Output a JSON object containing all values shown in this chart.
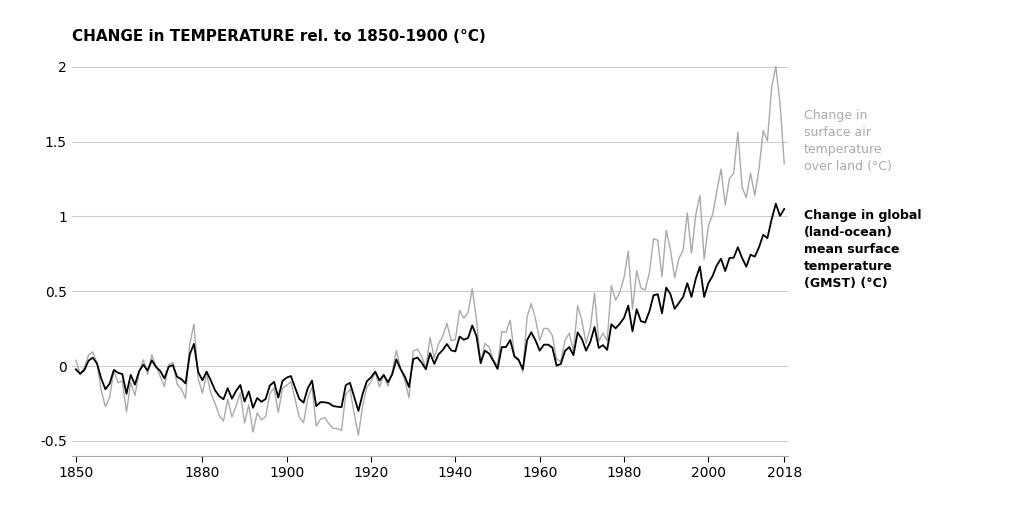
{
  "title": "CHANGE in TEMPERATURE rel. to 1850-1900 (°C)",
  "xlim": [
    1849,
    2019
  ],
  "ylim": [
    -0.6,
    2.1
  ],
  "yticks": [
    -0.5,
    0,
    0.5,
    1,
    1.5,
    2
  ],
  "xticks": [
    1850,
    1880,
    1900,
    1920,
    1940,
    1960,
    1980,
    2000,
    2018
  ],
  "land_color": "#aaaaaa",
  "gmst_color": "#000000",
  "label_land": "Change in\nsurface air\ntemperature\nover land (°C)",
  "label_gmst": "Change in global\n(land-ocean)\nmean surface\ntemperature\n(GMST) (°C)",
  "years": [
    1850,
    1851,
    1852,
    1853,
    1854,
    1855,
    1856,
    1857,
    1858,
    1859,
    1860,
    1861,
    1862,
    1863,
    1864,
    1865,
    1866,
    1867,
    1868,
    1869,
    1870,
    1871,
    1872,
    1873,
    1874,
    1875,
    1876,
    1877,
    1878,
    1879,
    1880,
    1881,
    1882,
    1883,
    1884,
    1885,
    1886,
    1887,
    1888,
    1889,
    1890,
    1891,
    1892,
    1893,
    1894,
    1895,
    1896,
    1897,
    1898,
    1899,
    1900,
    1901,
    1902,
    1903,
    1904,
    1905,
    1906,
    1907,
    1908,
    1909,
    1910,
    1911,
    1912,
    1913,
    1914,
    1915,
    1916,
    1917,
    1918,
    1919,
    1920,
    1921,
    1922,
    1923,
    1924,
    1925,
    1926,
    1927,
    1928,
    1929,
    1930,
    1931,
    1932,
    1933,
    1934,
    1935,
    1936,
    1937,
    1938,
    1939,
    1940,
    1941,
    1942,
    1943,
    1944,
    1945,
    1946,
    1947,
    1948,
    1949,
    1950,
    1951,
    1952,
    1953,
    1954,
    1955,
    1956,
    1957,
    1958,
    1959,
    1960,
    1961,
    1962,
    1963,
    1964,
    1965,
    1966,
    1967,
    1968,
    1969,
    1970,
    1971,
    1972,
    1973,
    1974,
    1975,
    1976,
    1977,
    1978,
    1979,
    1980,
    1981,
    1982,
    1983,
    1984,
    1985,
    1986,
    1987,
    1988,
    1989,
    1990,
    1991,
    1992,
    1993,
    1994,
    1995,
    1996,
    1997,
    1998,
    1999,
    2000,
    2001,
    2002,
    2003,
    2004,
    2005,
    2006,
    2007,
    2008,
    2009,
    2010,
    2011,
    2012,
    2013,
    2014,
    2015,
    2016,
    2017,
    2018
  ],
  "gmst": [
    -0.022,
    -0.052,
    -0.027,
    0.036,
    0.056,
    0.017,
    -0.083,
    -0.155,
    -0.118,
    -0.026,
    -0.045,
    -0.053,
    -0.185,
    -0.059,
    -0.124,
    -0.034,
    0.009,
    -0.03,
    0.038,
    -0.006,
    -0.033,
    -0.083,
    -0.005,
    0.006,
    -0.072,
    -0.087,
    -0.116,
    0.078,
    0.148,
    -0.04,
    -0.095,
    -0.037,
    -0.096,
    -0.162,
    -0.201,
    -0.222,
    -0.148,
    -0.218,
    -0.166,
    -0.127,
    -0.237,
    -0.169,
    -0.279,
    -0.213,
    -0.239,
    -0.22,
    -0.13,
    -0.106,
    -0.211,
    -0.099,
    -0.077,
    -0.067,
    -0.146,
    -0.22,
    -0.244,
    -0.148,
    -0.097,
    -0.268,
    -0.241,
    -0.242,
    -0.248,
    -0.267,
    -0.272,
    -0.274,
    -0.128,
    -0.112,
    -0.207,
    -0.3,
    -0.187,
    -0.102,
    -0.075,
    -0.037,
    -0.096,
    -0.059,
    -0.108,
    -0.057,
    0.044,
    -0.02,
    -0.07,
    -0.14,
    0.046,
    0.057,
    0.023,
    -0.022,
    0.086,
    0.015,
    0.078,
    0.107,
    0.147,
    0.105,
    0.098,
    0.197,
    0.176,
    0.187,
    0.271,
    0.2,
    0.02,
    0.103,
    0.083,
    0.034,
    -0.019,
    0.127,
    0.127,
    0.174,
    0.063,
    0.04,
    -0.021,
    0.172,
    0.226,
    0.172,
    0.103,
    0.143,
    0.143,
    0.123,
    0.003,
    0.014,
    0.101,
    0.127,
    0.073,
    0.225,
    0.181,
    0.103,
    0.161,
    0.261,
    0.121,
    0.14,
    0.108,
    0.279,
    0.252,
    0.283,
    0.322,
    0.404,
    0.232,
    0.38,
    0.3,
    0.291,
    0.364,
    0.473,
    0.48,
    0.353,
    0.524,
    0.481,
    0.382,
    0.422,
    0.461,
    0.554,
    0.462,
    0.582,
    0.665,
    0.462,
    0.554,
    0.602,
    0.673,
    0.717,
    0.635,
    0.722,
    0.724,
    0.794,
    0.722,
    0.664,
    0.744,
    0.731,
    0.793,
    0.877,
    0.855,
    0.98,
    1.085,
    1.003,
    1.05
  ],
  "land": [
    0.038,
    -0.054,
    -0.01,
    0.073,
    0.095,
    0.019,
    -0.163,
    -0.271,
    -0.208,
    -0.031,
    -0.112,
    -0.099,
    -0.307,
    -0.11,
    -0.197,
    -0.041,
    0.042,
    -0.056,
    0.075,
    0.002,
    -0.07,
    -0.137,
    0.01,
    0.023,
    -0.121,
    -0.154,
    -0.216,
    0.146,
    0.281,
    -0.084,
    -0.18,
    -0.055,
    -0.181,
    -0.249,
    -0.33,
    -0.368,
    -0.224,
    -0.34,
    -0.267,
    -0.18,
    -0.38,
    -0.259,
    -0.441,
    -0.313,
    -0.36,
    -0.337,
    -0.185,
    -0.145,
    -0.311,
    -0.148,
    -0.128,
    -0.105,
    -0.222,
    -0.342,
    -0.378,
    -0.216,
    -0.14,
    -0.401,
    -0.355,
    -0.344,
    -0.386,
    -0.416,
    -0.419,
    -0.43,
    -0.19,
    -0.155,
    -0.318,
    -0.463,
    -0.266,
    -0.144,
    -0.103,
    -0.041,
    -0.139,
    -0.06,
    -0.134,
    -0.042,
    0.105,
    -0.015,
    -0.095,
    -0.212,
    0.101,
    0.114,
    0.065,
    -0.014,
    0.191,
    0.053,
    0.148,
    0.199,
    0.286,
    0.17,
    0.177,
    0.372,
    0.32,
    0.355,
    0.517,
    0.312,
    0.016,
    0.151,
    0.128,
    0.039,
    0.004,
    0.23,
    0.226,
    0.307,
    0.072,
    0.05,
    -0.04,
    0.329,
    0.417,
    0.314,
    0.171,
    0.253,
    0.248,
    0.204,
    0.046,
    0.031,
    0.172,
    0.219,
    0.101,
    0.404,
    0.304,
    0.152,
    0.255,
    0.487,
    0.166,
    0.22,
    0.168,
    0.538,
    0.44,
    0.493,
    0.591,
    0.768,
    0.38,
    0.638,
    0.521,
    0.508,
    0.622,
    0.851,
    0.84,
    0.598,
    0.907,
    0.779,
    0.59,
    0.718,
    0.773,
    1.024,
    0.754,
    1.009,
    1.139,
    0.714,
    0.934,
    1.013,
    1.167,
    1.316,
    1.076,
    1.253,
    1.289,
    1.562,
    1.195,
    1.126,
    1.289,
    1.141,
    1.316,
    1.573,
    1.505,
    1.861,
    2.003,
    1.753,
    1.352
  ],
  "background_color": "#ffffff",
  "grid_color": "#cccccc",
  "title_fontsize": 11,
  "tick_fontsize": 10,
  "label_land_fontsize": 9,
  "label_gmst_fontsize": 9,
  "linewidth_land": 1.0,
  "linewidth_gmst": 1.3
}
